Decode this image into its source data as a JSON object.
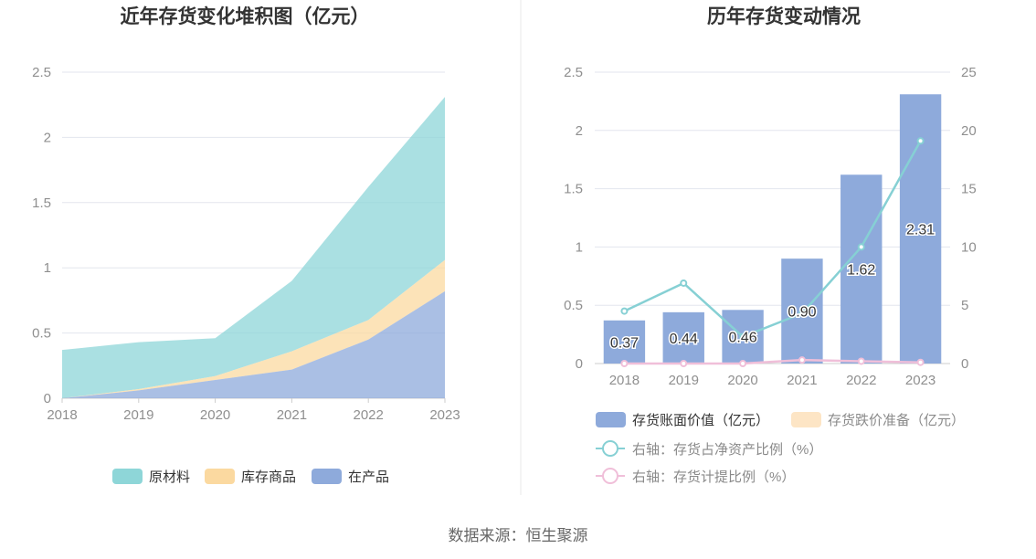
{
  "source": "数据来源：恒生聚源",
  "chart_data": [
    {
      "type": "area",
      "stacked": true,
      "title": "近年存货变化堆积图（亿元）",
      "x": [
        "2018",
        "2019",
        "2020",
        "2021",
        "2022",
        "2023"
      ],
      "y_ticks": [
        "0",
        "0.5",
        "1",
        "1.5",
        "2",
        "2.5"
      ],
      "ylim": [
        0,
        2.5
      ],
      "grid": true,
      "legend_position": "bottom",
      "series": [
        {
          "name": "在产品",
          "color": "#8eaadb",
          "values": [
            0.0,
            0.06,
            0.14,
            0.22,
            0.45,
            0.82
          ]
        },
        {
          "name": "库存商品",
          "color": "#fbd9a0",
          "values": [
            0.0,
            0.01,
            0.03,
            0.14,
            0.15,
            0.24
          ]
        },
        {
          "name": "原材料",
          "color": "#8ed6d8",
          "values": [
            0.37,
            0.36,
            0.29,
            0.54,
            1.02,
            1.25
          ]
        }
      ]
    },
    {
      "type": "bar",
      "title": "历年存货变动情况",
      "categories": [
        "2018",
        "2019",
        "2020",
        "2021",
        "2022",
        "2023"
      ],
      "y_ticks_left": [
        "0",
        "0.5",
        "1",
        "1.5",
        "2",
        "2.5"
      ],
      "y_ticks_right": [
        "0",
        "5",
        "10",
        "15",
        "20",
        "25"
      ],
      "ylim_left": [
        0,
        2.5
      ],
      "ylim_right": [
        0,
        25
      ],
      "grid": true,
      "legend_position": "bottom",
      "series": [
        {
          "name": "存货账面价值（亿元）",
          "kind": "bar",
          "axis": "left",
          "color": "#8eaadb",
          "values": [
            0.37,
            0.44,
            0.46,
            0.9,
            1.62,
            2.31
          ],
          "labels": [
            "0.37",
            "0.44",
            "0.46",
            "0.90",
            "1.62",
            "2.31"
          ]
        },
        {
          "name": "存货跌价准备（亿元）",
          "kind": "bar",
          "axis": "left",
          "color": "#fde5c5",
          "values": [
            0,
            0,
            0,
            0,
            0,
            0
          ]
        },
        {
          "name": "右轴：存货占净资产比例（%）",
          "kind": "line",
          "axis": "right",
          "color": "#86d0d4",
          "values": [
            4.5,
            6.9,
            2.3,
            4.3,
            10.0,
            19.1
          ]
        },
        {
          "name": "右轴：存货计提比例（%）",
          "kind": "line",
          "axis": "right",
          "color": "#f0bfd9",
          "values": [
            0.0,
            0.0,
            0.0,
            0.3,
            0.2,
            0.1
          ]
        }
      ]
    }
  ]
}
